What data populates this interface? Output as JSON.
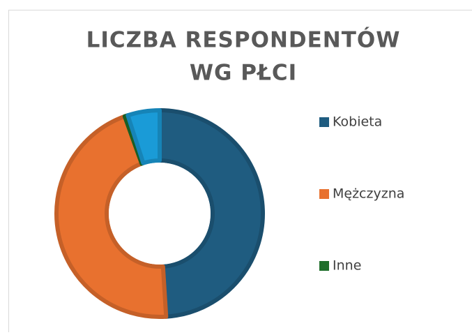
{
  "chart_data": {
    "type": "donut",
    "title_lines": [
      "LICZBA RESPONDENTÓW",
      "WG PŁCI"
    ],
    "categories": [
      "Kobieta",
      "Mężczyzna",
      "Inne",
      null
    ],
    "values": [
      49,
      45.5,
      0.5,
      5
    ],
    "colors": [
      "#1f5c80",
      "#e8712f",
      "#1e6e2a",
      "#1a9bd7"
    ],
    "legend": "right"
  }
}
